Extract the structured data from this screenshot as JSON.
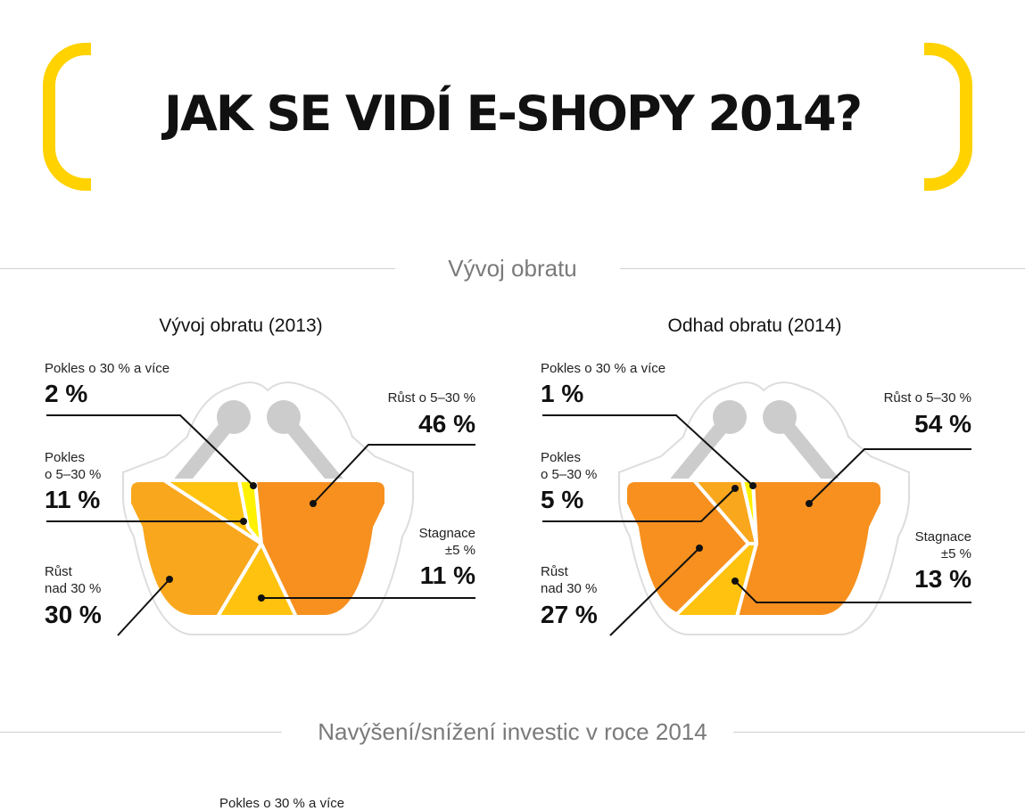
{
  "title": "JAK SE VIDÍ E-SHOPY 2014?",
  "section1": "Vývoj obratu",
  "section2": "Navýšení/snížení investic v roce 2014",
  "cut_label": "Pokles o 30 % a více",
  "colors": {
    "bracket": "#ffd200",
    "orange_dark": "#f7901e",
    "orange_mid": "#f9a71c",
    "yellow": "#ffc20e",
    "yellow_bright": "#fff200",
    "handle": "#cccccc"
  },
  "labels": {
    "pokles30": "Pokles o 30 % a více",
    "rust5_30": "Růst o 5–30 %",
    "pokles": "Pokles",
    "o5_30": "o 5–30 %",
    "stagnace": "Stagnace",
    "pm5": "±5 %",
    "rust": "Růst",
    "nad30": "nad 30 %"
  },
  "chart_data": [
    {
      "type": "pie",
      "title": "Vývoj obratu (2013)",
      "categories": [
        "Pokles o 30 % a více",
        "Pokles o 5–30 %",
        "Stagnace ±5 %",
        "Růst o 5–30 %",
        "Růst nad 30 %"
      ],
      "values": [
        2,
        11,
        11,
        46,
        30
      ],
      "value_labels": [
        "2 %",
        "11 %",
        "11 %",
        "46 %",
        "30 %"
      ]
    },
    {
      "type": "pie",
      "title": "Odhad obratu (2014)",
      "categories": [
        "Pokles o 30 % a více",
        "Pokles o 5–30 %",
        "Stagnace ±5 %",
        "Růst o 5–30 %",
        "Růst nad 30 %"
      ],
      "values": [
        1,
        5,
        13,
        54,
        27
      ],
      "value_labels": [
        "1 %",
        "5 %",
        "13 %",
        "54 %",
        "27 %"
      ]
    }
  ]
}
